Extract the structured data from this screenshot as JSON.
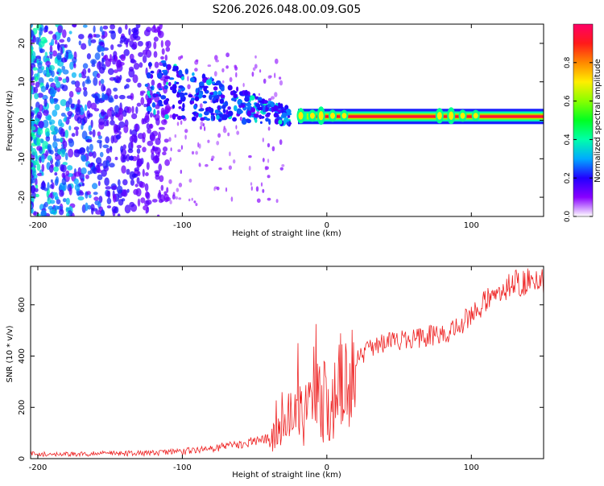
{
  "title": "S206.2026.048.00.09.G05",
  "chart_data": [
    {
      "type": "heatmap",
      "xlabel": "Height of straight line (km)",
      "ylabel": "Frequency (Hz)",
      "xlim": [
        -205,
        150
      ],
      "ylim": [
        -25,
        25
      ],
      "xticks": [
        -200,
        -100,
        0,
        100
      ],
      "yticks": [
        -20,
        -10,
        0,
        10,
        20
      ],
      "colorbar": {
        "label": "Normalized spectral amplitude",
        "range": [
          0,
          1
        ],
        "ticks": [
          "0.0",
          "0.2",
          "0.4",
          "0.6",
          "0.8"
        ],
        "tick_values": [
          0.0,
          0.2,
          0.4,
          0.6,
          0.8
        ]
      },
      "ridge": {
        "frequency_hz": 1,
        "strong_from_km": -20,
        "strong_to_km": 150,
        "noise_region_km": [
          -205,
          -110
        ],
        "transition_region_km": [
          -110,
          -30
        ]
      }
    },
    {
      "type": "line",
      "xlabel": "Height of straight line (km)",
      "ylabel": "SNR (10 * v/v)",
      "xlim": [
        -205,
        150
      ],
      "ylim": [
        0,
        750
      ],
      "xticks": [
        -200,
        -100,
        0,
        100
      ],
      "yticks": [
        0,
        200,
        400,
        600
      ],
      "color": "#ee2222",
      "trend": {
        "x": [
          -205,
          -150,
          -120,
          -100,
          -80,
          -60,
          -45,
          -35,
          -30,
          -25,
          -20,
          -15,
          -10,
          -5,
          0,
          5,
          10,
          15,
          20,
          30,
          40,
          50,
          60,
          70,
          80,
          90,
          100,
          110,
          120,
          130,
          140,
          150
        ],
        "y": [
          18,
          20,
          22,
          28,
          40,
          55,
          75,
          95,
          120,
          150,
          175,
          190,
          205,
          220,
          240,
          260,
          290,
          330,
          380,
          430,
          450,
          460,
          470,
          478,
          485,
          510,
          560,
          610,
          650,
          680,
          690,
          690
        ]
      }
    }
  ]
}
